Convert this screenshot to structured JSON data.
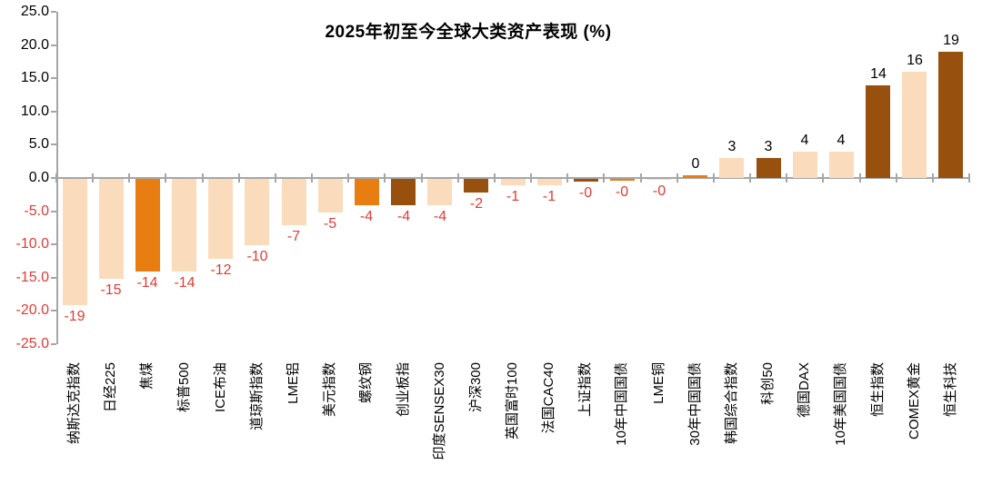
{
  "chart_data": {
    "type": "bar",
    "title": "2025年初至今全球大类资产表现 (%)",
    "xlabel": "",
    "ylabel": "",
    "ylim": [
      -25,
      25
    ],
    "ytick_step": 5,
    "grid": false,
    "legend": "none",
    "colors": {
      "light": "#FADCBC",
      "orange": "#E87D12",
      "dark": "#98500F"
    },
    "label_colors": {
      "positive": "#000000",
      "negative": "#E23B35"
    },
    "axis_color": "#A6A6A6",
    "bars": [
      {
        "label": "纳斯达克指数",
        "value": -19,
        "display": "-19",
        "color": "light"
      },
      {
        "label": "日经225",
        "value": -15,
        "display": "-15",
        "color": "light"
      },
      {
        "label": "焦煤",
        "value": -14,
        "display": "-14",
        "color": "orange"
      },
      {
        "label": "标普500",
        "value": -14,
        "display": "-14",
        "color": "light"
      },
      {
        "label": "ICE布油",
        "value": -12,
        "display": "-12",
        "color": "light"
      },
      {
        "label": "道琼斯指数",
        "value": -10,
        "display": "-10",
        "color": "light"
      },
      {
        "label": "LME铝",
        "value": -7,
        "display": "-7",
        "color": "light"
      },
      {
        "label": "美元指数",
        "value": -5,
        "display": "-5",
        "color": "light"
      },
      {
        "label": "螺纹钢",
        "value": -4,
        "display": "-4",
        "color": "orange"
      },
      {
        "label": "创业板指",
        "value": -4,
        "display": "-4",
        "color": "dark"
      },
      {
        "label": "印度SENSEX30",
        "value": -4,
        "display": "-4",
        "color": "light"
      },
      {
        "label": "沪深300",
        "value": -2,
        "display": "-2",
        "color": "dark"
      },
      {
        "label": "英国富时100",
        "value": -1,
        "display": "-1",
        "color": "light"
      },
      {
        "label": "法国CAC40",
        "value": -1,
        "display": "-1",
        "color": "light"
      },
      {
        "label": "上证指数",
        "value": -0.4,
        "display": "-0",
        "color": "dark"
      },
      {
        "label": "10年中国国债",
        "value": -0.3,
        "display": "-0",
        "color": "orange"
      },
      {
        "label": "LME铜",
        "value": -0.1,
        "display": "-0",
        "color": "light"
      },
      {
        "label": "30年中国国债",
        "value": 0.4,
        "display": "0",
        "color": "orange"
      },
      {
        "label": "韩国综合指数",
        "value": 3,
        "display": "3",
        "color": "light"
      },
      {
        "label": "科创50",
        "value": 3,
        "display": "3",
        "color": "dark"
      },
      {
        "label": "德国DAX",
        "value": 4,
        "display": "4",
        "color": "light"
      },
      {
        "label": "10年美国国债",
        "value": 4,
        "display": "4",
        "color": "light"
      },
      {
        "label": "恒生指数",
        "value": 14,
        "display": "14",
        "color": "dark"
      },
      {
        "label": "COMEX黄金",
        "value": 16,
        "display": "16",
        "color": "light"
      },
      {
        "label": "恒生科技",
        "value": 19,
        "display": "19",
        "color": "dark"
      }
    ]
  }
}
